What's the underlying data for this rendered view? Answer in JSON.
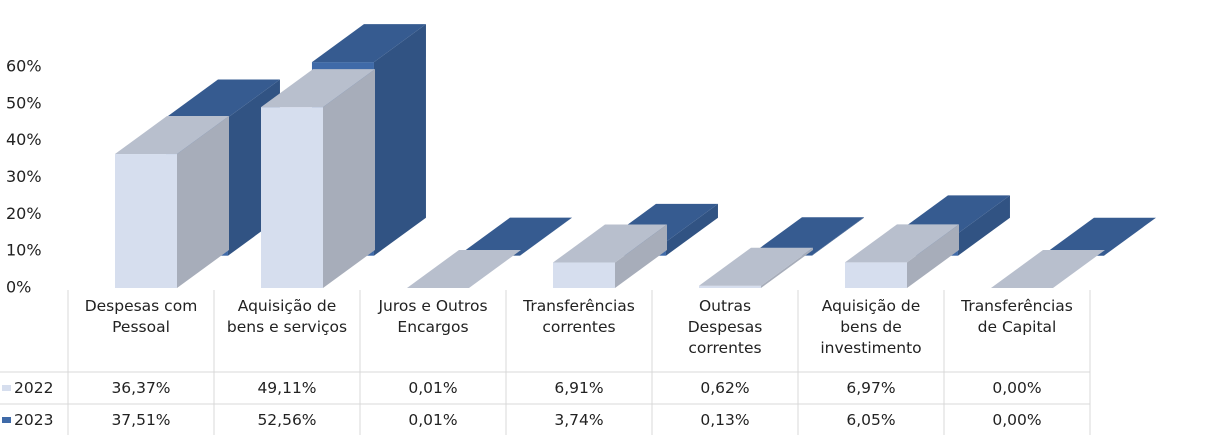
{
  "chart_data": {
    "type": "bar3d",
    "categories": [
      "Despesas com\nPessoal",
      "Aquisição de\nbens e serviços",
      "Juros e Outros\nEncargos",
      "Transferências\ncorrentes",
      "Outras\nDespesas\ncorrentes",
      "Aquisição de\nbens de\ninvestimento",
      "Transferências\nde Capital"
    ],
    "series": [
      {
        "name": "2022",
        "color": "#d6deee",
        "values": [
          36.37,
          49.11,
          0.01,
          6.91,
          0.62,
          6.97,
          0.0
        ],
        "value_labels": [
          "36,37%",
          "49,11%",
          "0,01%",
          "6,91%",
          "0,62%",
          "6,97%",
          "0,00%"
        ]
      },
      {
        "name": "2023",
        "color": "#3f6aa8",
        "values": [
          37.51,
          52.56,
          0.01,
          3.74,
          0.13,
          6.05,
          0.0
        ],
        "value_labels": [
          "37,51%",
          "52,56%",
          "0,01%",
          "3,74%",
          "0,13%",
          "6,05%",
          "0,00%"
        ]
      }
    ],
    "ylim": [
      0,
      60
    ],
    "yticks": [
      {
        "value": 0,
        "label": "0%"
      },
      {
        "value": 10,
        "label": "10%"
      },
      {
        "value": 20,
        "label": "20%"
      },
      {
        "value": 30,
        "label": "30%"
      },
      {
        "value": 40,
        "label": "40%"
      },
      {
        "value": 50,
        "label": "50%"
      },
      {
        "value": 60,
        "label": "60%"
      }
    ],
    "grid": false,
    "data_table": true
  }
}
